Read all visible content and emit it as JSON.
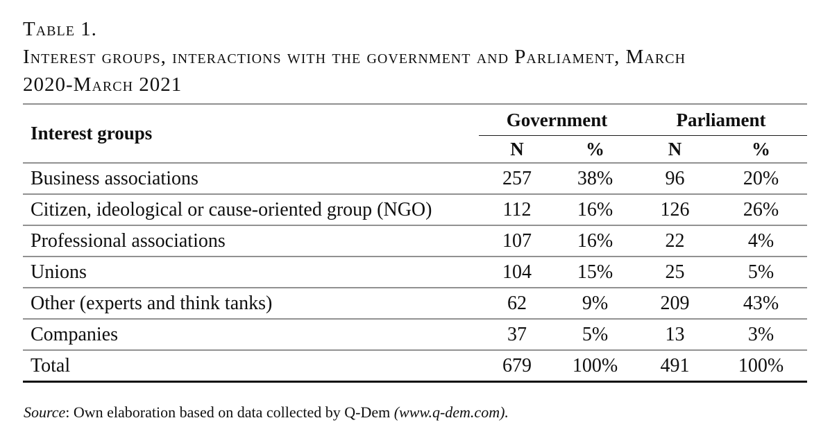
{
  "title": {
    "lines": [
      "Table 1.",
      "Interest groups, interactions with the government and Parliament, March",
      "2020-March 2021"
    ]
  },
  "table": {
    "label_header": "Interest groups",
    "groups": [
      {
        "label": "Government"
      },
      {
        "label": "Parliament"
      }
    ],
    "sub_headers": [
      "N",
      "%",
      "N",
      "%"
    ],
    "rows": [
      {
        "label": "Business associations",
        "gov_n": "257",
        "gov_pct": "38%",
        "parl_n": "96",
        "parl_pct": "20%"
      },
      {
        "label": "Citizen, ideological or cause-oriented group (NGO)",
        "gov_n": "112",
        "gov_pct": "16%",
        "parl_n": "126",
        "parl_pct": "26%"
      },
      {
        "label": "Professional associations",
        "gov_n": "107",
        "gov_pct": "16%",
        "parl_n": "22",
        "parl_pct": "4%"
      },
      {
        "label": "Unions",
        "gov_n": "104",
        "gov_pct": "15%",
        "parl_n": "25",
        "parl_pct": "5%"
      },
      {
        "label": "Other (experts and think tanks)",
        "gov_n": "62",
        "gov_pct": "9%",
        "parl_n": "209",
        "parl_pct": "43%"
      },
      {
        "label": "Companies",
        "gov_n": "37",
        "gov_pct": "5%",
        "parl_n": "13",
        "parl_pct": "3%"
      },
      {
        "label": "Total",
        "gov_n": "679",
        "gov_pct": "100%",
        "parl_n": "491",
        "parl_pct": "100%"
      }
    ]
  },
  "source": {
    "prefix_italic": "Source",
    "body_text": ": Own elaboration based on data collected by Q-Dem ",
    "suffix_italic": "(www.q-dem.com)."
  },
  "colors": {
    "rule_gray": "#8f8f8f",
    "rule_black": "#0c0c0c",
    "text": "#0f0f0f",
    "background": "#ffffff"
  }
}
